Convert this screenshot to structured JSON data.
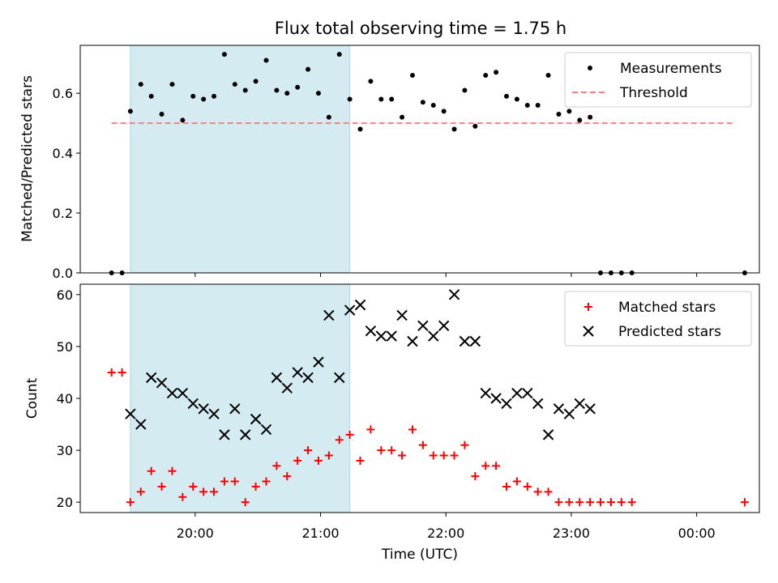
{
  "title": "Flux total observing time = 1.75 h",
  "colors": {
    "shade": "#d3ebf1",
    "measurement": "#000000",
    "threshold": "#ff7f7f",
    "matched": "#ff0000",
    "predicted": "#000000"
  },
  "chart_data": [
    {
      "type": "scatter",
      "ylabel": "Matched/Predicted stars",
      "xlabel": "",
      "xlim": [
        "19:05",
        "00:30"
      ],
      "ylim": [
        0,
        0.76
      ],
      "yticks": [
        "0.0",
        "0.2",
        "0.4",
        "0.6"
      ],
      "grid": false,
      "legend_position": "top-right",
      "shaded_interval": [
        "19:29",
        "21:14"
      ],
      "threshold": {
        "name": "Threshold",
        "value": 0.5,
        "x_range": [
          "19:20",
          "24:18"
        ]
      },
      "series": [
        {
          "name": "Measurements",
          "points": [
            [
              "19:20",
              0.0
            ],
            [
              "19:25",
              0.0
            ],
            [
              "19:29",
              0.54
            ],
            [
              "19:34",
              0.63
            ],
            [
              "19:39",
              0.59
            ],
            [
              "19:44",
              0.53
            ],
            [
              "19:49",
              0.63
            ],
            [
              "19:54",
              0.51
            ],
            [
              "19:59",
              0.59
            ],
            [
              "20:04",
              0.58
            ],
            [
              "20:09",
              0.59
            ],
            [
              "20:14",
              0.73
            ],
            [
              "20:19",
              0.63
            ],
            [
              "20:24",
              0.61
            ],
            [
              "20:29",
              0.64
            ],
            [
              "20:34",
              0.71
            ],
            [
              "20:39",
              0.61
            ],
            [
              "20:44",
              0.6
            ],
            [
              "20:49",
              0.62
            ],
            [
              "20:54",
              0.68
            ],
            [
              "20:59",
              0.6
            ],
            [
              "21:04",
              0.52
            ],
            [
              "21:09",
              0.73
            ],
            [
              "21:14",
              0.58
            ],
            [
              "21:19",
              0.48
            ],
            [
              "21:24",
              0.64
            ],
            [
              "21:29",
              0.58
            ],
            [
              "21:34",
              0.58
            ],
            [
              "21:39",
              0.52
            ],
            [
              "21:44",
              0.66
            ],
            [
              "21:49",
              0.57
            ],
            [
              "21:54",
              0.56
            ],
            [
              "21:59",
              0.54
            ],
            [
              "22:04",
              0.48
            ],
            [
              "22:09",
              0.61
            ],
            [
              "22:14",
              0.49
            ],
            [
              "22:19",
              0.66
            ],
            [
              "22:24",
              0.67
            ],
            [
              "22:29",
              0.59
            ],
            [
              "22:34",
              0.58
            ],
            [
              "22:39",
              0.56
            ],
            [
              "22:44",
              0.56
            ],
            [
              "22:49",
              0.66
            ],
            [
              "22:54",
              0.53
            ],
            [
              "22:59",
              0.54
            ],
            [
              "23:04",
              0.51
            ],
            [
              "23:09",
              0.52
            ],
            [
              "23:14",
              0.0
            ],
            [
              "23:19",
              0.0
            ],
            [
              "23:24",
              0.0
            ],
            [
              "23:29",
              0.0
            ],
            [
              "24:23",
              0.0
            ]
          ]
        }
      ]
    },
    {
      "type": "scatter",
      "ylabel": "Count",
      "xlabel": "Time (UTC)",
      "xlim": [
        "19:05",
        "00:30"
      ],
      "ylim": [
        18,
        62
      ],
      "yticks": [
        "20",
        "30",
        "40",
        "50",
        "60"
      ],
      "xticks": [
        "20:00",
        "21:00",
        "22:00",
        "23:00",
        "00:00"
      ],
      "grid": false,
      "legend_position": "top-right",
      "shaded_interval": [
        "19:29",
        "21:14"
      ],
      "series": [
        {
          "name": "Matched stars",
          "marker": "+",
          "points": [
            [
              "19:20",
              45
            ],
            [
              "19:25",
              45
            ],
            [
              "19:29",
              20
            ],
            [
              "19:34",
              22
            ],
            [
              "19:39",
              26
            ],
            [
              "19:44",
              23
            ],
            [
              "19:49",
              26
            ],
            [
              "19:54",
              21
            ],
            [
              "19:59",
              23
            ],
            [
              "20:04",
              22
            ],
            [
              "20:09",
              22
            ],
            [
              "20:14",
              24
            ],
            [
              "20:19",
              24
            ],
            [
              "20:24",
              20
            ],
            [
              "20:29",
              23
            ],
            [
              "20:34",
              24
            ],
            [
              "20:39",
              27
            ],
            [
              "20:44",
              25
            ],
            [
              "20:49",
              28
            ],
            [
              "20:54",
              30
            ],
            [
              "20:59",
              28
            ],
            [
              "21:04",
              29
            ],
            [
              "21:09",
              32
            ],
            [
              "21:14",
              33
            ],
            [
              "21:19",
              28
            ],
            [
              "21:24",
              34
            ],
            [
              "21:29",
              30
            ],
            [
              "21:34",
              30
            ],
            [
              "21:39",
              29
            ],
            [
              "21:44",
              34
            ],
            [
              "21:49",
              31
            ],
            [
              "21:54",
              29
            ],
            [
              "21:59",
              29
            ],
            [
              "22:04",
              29
            ],
            [
              "22:09",
              31
            ],
            [
              "22:14",
              25
            ],
            [
              "22:19",
              27
            ],
            [
              "22:24",
              27
            ],
            [
              "22:29",
              23
            ],
            [
              "22:34",
              24
            ],
            [
              "22:39",
              23
            ],
            [
              "22:44",
              22
            ],
            [
              "22:49",
              22
            ],
            [
              "22:54",
              20
            ],
            [
              "22:59",
              20
            ],
            [
              "23:04",
              20
            ],
            [
              "23:09",
              20
            ],
            [
              "23:14",
              20
            ],
            [
              "23:19",
              20
            ],
            [
              "23:24",
              20
            ],
            [
              "23:29",
              20
            ],
            [
              "24:23",
              20
            ]
          ]
        },
        {
          "name": "Predicted stars",
          "marker": "x",
          "points": [
            [
              "19:29",
              37
            ],
            [
              "19:34",
              35
            ],
            [
              "19:39",
              44
            ],
            [
              "19:44",
              43
            ],
            [
              "19:49",
              41
            ],
            [
              "19:54",
              41
            ],
            [
              "19:59",
              39
            ],
            [
              "20:04",
              38
            ],
            [
              "20:09",
              37
            ],
            [
              "20:14",
              33
            ],
            [
              "20:19",
              38
            ],
            [
              "20:24",
              33
            ],
            [
              "20:29",
              36
            ],
            [
              "20:34",
              34
            ],
            [
              "20:39",
              44
            ],
            [
              "20:44",
              42
            ],
            [
              "20:49",
              45
            ],
            [
              "20:54",
              44
            ],
            [
              "20:59",
              47
            ],
            [
              "21:04",
              56
            ],
            [
              "21:09",
              44
            ],
            [
              "21:14",
              57
            ],
            [
              "21:19",
              58
            ],
            [
              "21:24",
              53
            ],
            [
              "21:29",
              52
            ],
            [
              "21:34",
              52
            ],
            [
              "21:39",
              56
            ],
            [
              "21:44",
              51
            ],
            [
              "21:49",
              54
            ],
            [
              "21:54",
              52
            ],
            [
              "21:59",
              54
            ],
            [
              "22:04",
              60
            ],
            [
              "22:09",
              51
            ],
            [
              "22:14",
              51
            ],
            [
              "22:19",
              41
            ],
            [
              "22:24",
              40
            ],
            [
              "22:29",
              39
            ],
            [
              "22:34",
              41
            ],
            [
              "22:39",
              41
            ],
            [
              "22:44",
              39
            ],
            [
              "22:49",
              33
            ],
            [
              "22:54",
              38
            ],
            [
              "22:59",
              37
            ],
            [
              "23:04",
              39
            ],
            [
              "23:09",
              38
            ]
          ]
        }
      ]
    }
  ]
}
